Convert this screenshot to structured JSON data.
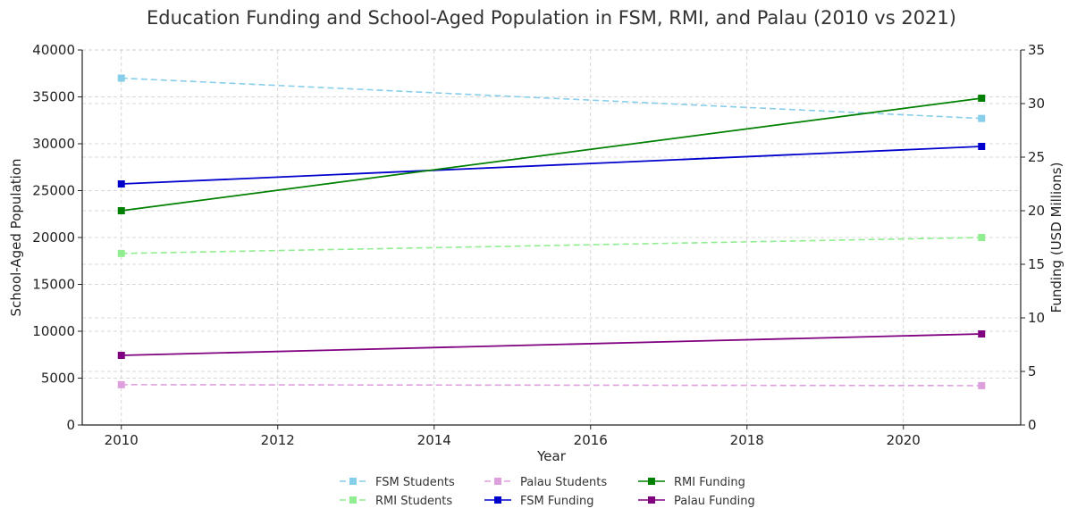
{
  "chart_data": {
    "type": "line",
    "title": "Education Funding and School-Aged Population in FSM, RMI, and Palau (2010 vs 2021)",
    "xlabel": "Year",
    "ylabel_left": "School-Aged Population",
    "ylabel_right": "Funding (USD Millions)",
    "x": [
      2010,
      2021
    ],
    "xlim": [
      2009.5,
      2021.5
    ],
    "xticks": [
      2010,
      2012,
      2014,
      2016,
      2018,
      2020
    ],
    "ylim_left": [
      0,
      40000
    ],
    "yticks_left": [
      0,
      5000,
      10000,
      15000,
      20000,
      25000,
      30000,
      35000,
      40000
    ],
    "ylim_right": [
      0,
      35
    ],
    "yticks_right": [
      0,
      5,
      10,
      15,
      20,
      25,
      30,
      35
    ],
    "grid": true,
    "legend_position": "bottom-center",
    "series": [
      {
        "name": "FSM Students",
        "axis": "left",
        "values": [
          37000,
          32700
        ],
        "color": "#87ceeb",
        "dashed": true
      },
      {
        "name": "RMI Students",
        "axis": "left",
        "values": [
          18300,
          20000
        ],
        "color": "#90ee90",
        "dashed": true
      },
      {
        "name": "Palau Students",
        "axis": "left",
        "values": [
          4300,
          4200
        ],
        "color": "#dda0dd",
        "dashed": true
      },
      {
        "name": "FSM Funding",
        "axis": "right",
        "values": [
          22.5,
          26.0
        ],
        "color": "#0000cd",
        "dashed": false
      },
      {
        "name": "RMI Funding",
        "axis": "right",
        "values": [
          20.0,
          30.5
        ],
        "color": "#008000",
        "dashed": false
      },
      {
        "name": "Palau Funding",
        "axis": "right",
        "values": [
          6.5,
          8.5
        ],
        "color": "#800080",
        "dashed": false
      }
    ]
  }
}
